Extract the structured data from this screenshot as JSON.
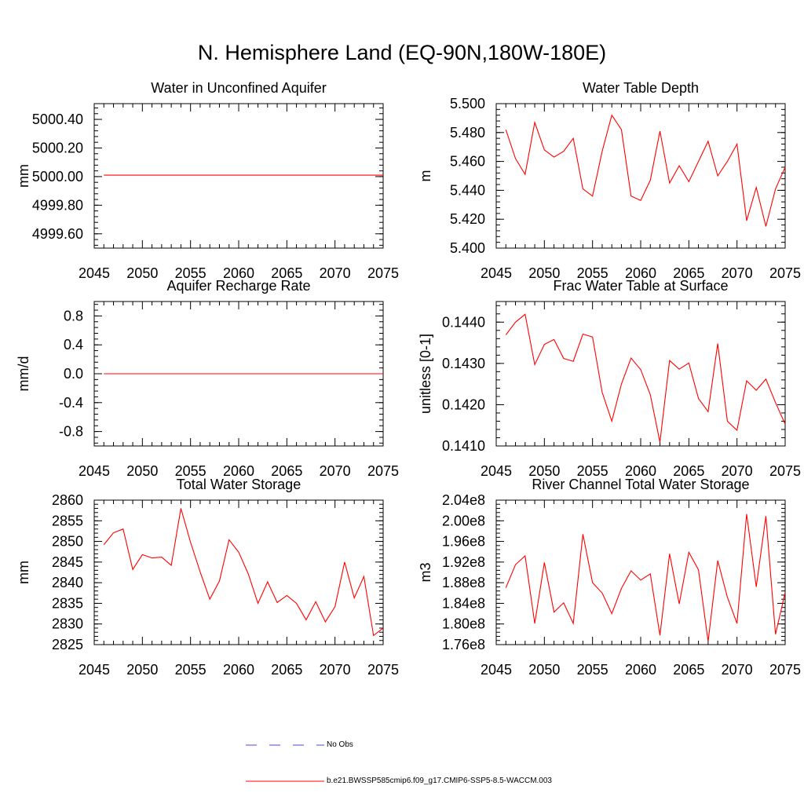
{
  "figure": {
    "title": "N. Hemisphere Land (EQ-90N,180W-180E)"
  },
  "legend": {
    "obs_label": "No Obs",
    "obs_color": "#4a4ad0",
    "model_label": "b.e21.BWSSP585cmip6.f09_g17.CMIP6-SSP5-8.5-WACCM.003",
    "model_color": "#ff0000"
  },
  "chart_data": [
    {
      "type": "line",
      "title": "Water in Unconfined Aquifer",
      "xlabel": "",
      "ylabel": "mm",
      "xlim": [
        2045,
        2075
      ],
      "ylim": [
        4999.5,
        5000.51
      ],
      "xticks": [
        2045,
        2050,
        2055,
        2060,
        2065,
        2070,
        2075
      ],
      "xtick_labels": [
        "2045",
        "2050",
        "2055",
        "2060",
        "2065",
        "2070",
        "2075"
      ],
      "yticks": [
        4999.6,
        4999.8,
        5000.0,
        5000.2,
        5000.4
      ],
      "ytick_labels": [
        "4999.60",
        "4999.80",
        "5000.00",
        "5000.20",
        "5000.40"
      ],
      "yminor": 0.04,
      "series": [
        {
          "name": "b.e21.BWSSP585cmip6.f09_g17.CMIP6-SSP5-8.5-WACCM.003",
          "x": [
            2046,
            2047,
            2048,
            2049,
            2050,
            2051,
            2052,
            2053,
            2054,
            2055,
            2056,
            2057,
            2058,
            2059,
            2060,
            2061,
            2062,
            2063,
            2064,
            2065,
            2066,
            2067,
            2068,
            2069,
            2070,
            2071,
            2072,
            2073,
            2074,
            2075
          ],
          "values": [
            5000.01,
            5000.01,
            5000.01,
            5000.01,
            5000.01,
            5000.01,
            5000.01,
            5000.01,
            5000.01,
            5000.01,
            5000.01,
            5000.01,
            5000.01,
            5000.01,
            5000.01,
            5000.01,
            5000.01,
            5000.01,
            5000.01,
            5000.01,
            5000.01,
            5000.01,
            5000.01,
            5000.01,
            5000.01,
            5000.01,
            5000.01,
            5000.01,
            5000.01,
            5000.01
          ]
        }
      ]
    },
    {
      "type": "line",
      "title": "Water Table Depth",
      "xlabel": "",
      "ylabel": "m",
      "xlim": [
        2045,
        2075
      ],
      "ylim": [
        5.4,
        5.5
      ],
      "xticks": [
        2045,
        2050,
        2055,
        2060,
        2065,
        2070,
        2075
      ],
      "xtick_labels": [
        "2045",
        "2050",
        "2055",
        "2060",
        "2065",
        "2070",
        "2075"
      ],
      "yticks": [
        5.4,
        5.42,
        5.44,
        5.46,
        5.48,
        5.5
      ],
      "ytick_labels": [
        "5.400",
        "5.420",
        "5.440",
        "5.460",
        "5.480",
        "5.500"
      ],
      "yminor": 0.004,
      "series": [
        {
          "name": "b.e21.BWSSP585cmip6.f09_g17.CMIP6-SSP5-8.5-WACCM.003",
          "x": [
            2046,
            2047,
            2048,
            2049,
            2050,
            2051,
            2052,
            2053,
            2054,
            2055,
            2056,
            2057,
            2058,
            2059,
            2060,
            2061,
            2062,
            2063,
            2064,
            2065,
            2066,
            2067,
            2068,
            2069,
            2070,
            2071,
            2072,
            2073,
            2074,
            2075
          ],
          "values": [
            5.482,
            5.462,
            5.451,
            5.487,
            5.468,
            5.463,
            5.467,
            5.476,
            5.441,
            5.436,
            5.467,
            5.492,
            5.482,
            5.436,
            5.433,
            5.447,
            5.481,
            5.445,
            5.457,
            5.446,
            5.46,
            5.474,
            5.45,
            5.46,
            5.472,
            5.419,
            5.442,
            5.415,
            5.441,
            5.456
          ]
        }
      ]
    },
    {
      "type": "line",
      "title": "Aquifer Recharge Rate",
      "xlabel": "",
      "ylabel": "mm/d",
      "xlim": [
        2045,
        2075
      ],
      "ylim": [
        -1.0,
        1.0
      ],
      "xticks": [
        2045,
        2050,
        2055,
        2060,
        2065,
        2070,
        2075
      ],
      "xtick_labels": [
        "2045",
        "2050",
        "2055",
        "2060",
        "2065",
        "2070",
        "2075"
      ],
      "yticks": [
        -0.8,
        -0.4,
        0.0,
        0.4,
        0.8
      ],
      "ytick_labels": [
        "-0.8",
        "-0.4",
        "0.0",
        "0.4",
        "0.8"
      ],
      "yminor": 0.08,
      "series": [
        {
          "name": "b.e21.BWSSP585cmip6.f09_g17.CMIP6-SSP5-8.5-WACCM.003",
          "x": [
            2046,
            2047,
            2048,
            2049,
            2050,
            2051,
            2052,
            2053,
            2054,
            2055,
            2056,
            2057,
            2058,
            2059,
            2060,
            2061,
            2062,
            2063,
            2064,
            2065,
            2066,
            2067,
            2068,
            2069,
            2070,
            2071,
            2072,
            2073,
            2074,
            2075
          ],
          "values": [
            0.0,
            0.0,
            0.0,
            0.0,
            0.0,
            0.0,
            0.0,
            0.0,
            0.0,
            0.0,
            0.0,
            0.0,
            0.0,
            0.0,
            0.0,
            0.0,
            0.0,
            0.0,
            0.0,
            0.0,
            0.0,
            0.0,
            0.0,
            0.0,
            0.0,
            0.0,
            0.0,
            0.0,
            0.0,
            0.0
          ]
        }
      ]
    },
    {
      "type": "line",
      "title": "Frac Water Table at Surface",
      "xlabel": "",
      "ylabel": "unitless [0-1]",
      "xlim": [
        2045,
        2075
      ],
      "ylim": [
        0.141,
        0.1445
      ],
      "xticks": [
        2045,
        2050,
        2055,
        2060,
        2065,
        2070,
        2075
      ],
      "xtick_labels": [
        "2045",
        "2050",
        "2055",
        "2060",
        "2065",
        "2070",
        "2075"
      ],
      "yticks": [
        0.141,
        0.142,
        0.143,
        0.144
      ],
      "ytick_labels": [
        "0.1410",
        "0.1420",
        "0.1430",
        "0.1440"
      ],
      "yminor": 0.0002,
      "series": [
        {
          "name": "b.e21.BWSSP585cmip6.f09_g17.CMIP6-SSP5-8.5-WACCM.003",
          "x": [
            2046,
            2047,
            2048,
            2049,
            2050,
            2051,
            2052,
            2053,
            2054,
            2055,
            2056,
            2057,
            2058,
            2059,
            2060,
            2061,
            2062,
            2063,
            2064,
            2065,
            2066,
            2067,
            2068,
            2069,
            2070,
            2071,
            2072,
            2073,
            2074,
            2075
          ],
          "values": [
            0.14369,
            0.144,
            0.14419,
            0.14297,
            0.14346,
            0.14358,
            0.14312,
            0.14305,
            0.14371,
            0.14364,
            0.1423,
            0.1416,
            0.1425,
            0.14313,
            0.14285,
            0.14224,
            0.14109,
            0.14307,
            0.14286,
            0.14301,
            0.14215,
            0.14183,
            0.14348,
            0.1416,
            0.14138,
            0.14258,
            0.14235,
            0.14262,
            0.14205,
            0.14153
          ]
        }
      ]
    },
    {
      "type": "line",
      "title": "Total Water Storage",
      "xlabel": "",
      "ylabel": "mm",
      "xlim": [
        2045,
        2075
      ],
      "ylim": [
        2825,
        2860
      ],
      "xticks": [
        2045,
        2050,
        2055,
        2060,
        2065,
        2070,
        2075
      ],
      "xtick_labels": [
        "2045",
        "2050",
        "2055",
        "2060",
        "2065",
        "2070",
        "2075"
      ],
      "yticks": [
        2825,
        2830,
        2835,
        2840,
        2845,
        2850,
        2855,
        2860
      ],
      "ytick_labels": [
        "2825",
        "2830",
        "2835",
        "2840",
        "2845",
        "2850",
        "2855",
        "2860"
      ],
      "yminor": 1,
      "series": [
        {
          "name": "b.e21.BWSSP585cmip6.f09_g17.CMIP6-SSP5-8.5-WACCM.003",
          "x": [
            2046,
            2047,
            2048,
            2049,
            2050,
            2051,
            2052,
            2053,
            2054,
            2055,
            2056,
            2057,
            2058,
            2059,
            2060,
            2061,
            2062,
            2063,
            2064,
            2065,
            2066,
            2067,
            2068,
            2069,
            2070,
            2071,
            2072,
            2073,
            2074,
            2075
          ],
          "values": [
            2849.2,
            2852.1,
            2853.0,
            2843.2,
            2846.8,
            2846.0,
            2846.2,
            2844.2,
            2858.0,
            2849.8,
            2842.6,
            2836.0,
            2840.4,
            2850.4,
            2847.4,
            2842.1,
            2835.0,
            2840.2,
            2835.2,
            2836.9,
            2835.0,
            2831.0,
            2835.4,
            2830.5,
            2834.2,
            2845.0,
            2836.3,
            2841.5,
            2827.2,
            2829.0
          ]
        }
      ]
    },
    {
      "type": "line",
      "title": "River Channel Total Water Storage",
      "xlabel": "",
      "ylabel": "m3",
      "xlim": [
        2045,
        2075
      ],
      "ylim": [
        176000000,
        204000000
      ],
      "xticks": [
        2045,
        2050,
        2055,
        2060,
        2065,
        2070,
        2075
      ],
      "xtick_labels": [
        "2045",
        "2050",
        "2055",
        "2060",
        "2065",
        "2070",
        "2075"
      ],
      "yticks": [
        176000000,
        180000000,
        184000000,
        188000000,
        192000000,
        196000000,
        200000000,
        204000000
      ],
      "ytick_labels": [
        "1.76e8",
        "1.80e8",
        "1.84e8",
        "1.88e8",
        "1.92e8",
        "1.96e8",
        "2.00e8",
        "2.04e8"
      ],
      "yminor": 800000,
      "series": [
        {
          "name": "b.e21.BWSSP585cmip6.f09_g17.CMIP6-SSP5-8.5-WACCM.003",
          "x": [
            2046,
            2047,
            2048,
            2049,
            2050,
            2051,
            2052,
            2053,
            2054,
            2055,
            2056,
            2057,
            2058,
            2059,
            2060,
            2061,
            2062,
            2063,
            2064,
            2065,
            2066,
            2067,
            2068,
            2069,
            2070,
            2071,
            2072,
            2073,
            2074,
            2075
          ],
          "values": [
            187000000,
            191500000,
            193200000,
            180100000,
            191900000,
            182300000,
            184100000,
            180100000,
            197400000,
            188000000,
            186000000,
            182000000,
            186900000,
            190300000,
            188500000,
            189700000,
            177800000,
            193600000,
            183900000,
            193900000,
            190500000,
            176600000,
            192300000,
            185200000,
            180100000,
            201300000,
            187200000,
            200900000,
            178000000,
            186100000
          ]
        }
      ]
    }
  ]
}
